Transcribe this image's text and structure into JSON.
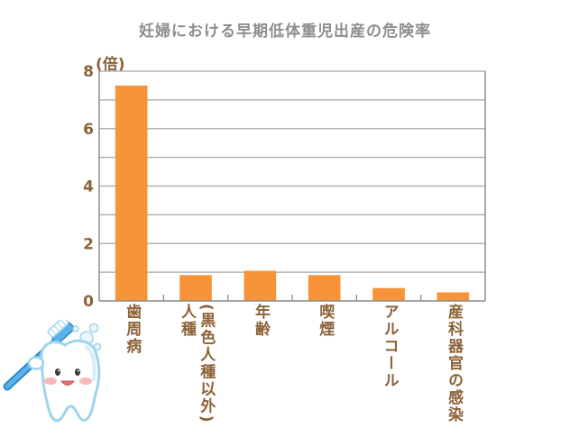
{
  "chart_data": {
    "type": "bar",
    "title": "妊婦における早期低体重児出産の危険率",
    "xlabel": "",
    "ylabel": "(倍)",
    "categories": [
      "歯周病",
      "人種\n(黒色人種以外)",
      "年齢",
      "喫煙",
      "アルコール",
      "産科器官の感染"
    ],
    "values": [
      7.5,
      0.9,
      1.05,
      0.9,
      0.45,
      0.3
    ],
    "ylim": [
      0,
      8
    ],
    "yticks": [
      0,
      2,
      4,
      6,
      8
    ],
    "grid": true,
    "grid_interval": 1
  },
  "colors": {
    "bar": "#F7943A",
    "title": "#8e8e8e",
    "axis_text": "#8c6239",
    "grid": "#a6a6a6",
    "frame": "#8c8c8c"
  },
  "illustration": {
    "icon": "tooth-mascot-icon"
  }
}
